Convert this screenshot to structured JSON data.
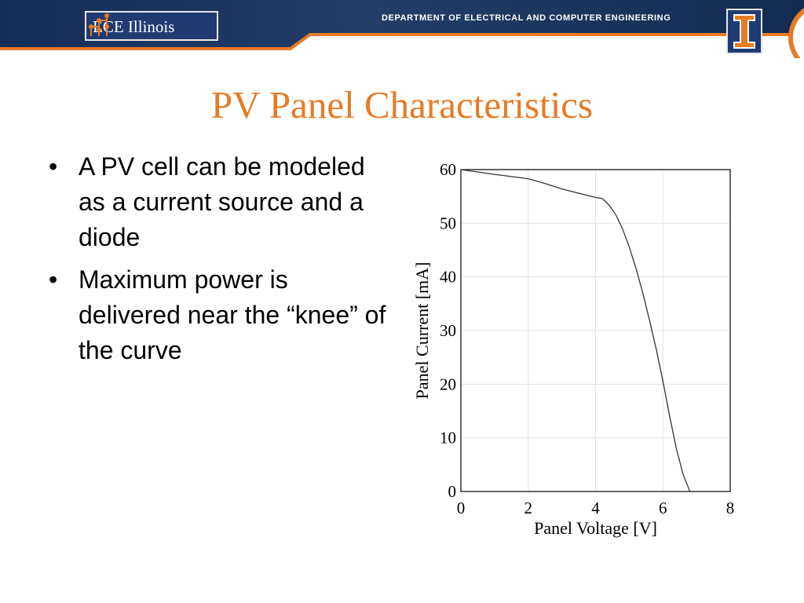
{
  "header": {
    "logo_text": "ECE Illinois",
    "department": "DEPARTMENT OF ELECTRICAL AND COMPUTER ENGINEERING",
    "block_i_letter": "I",
    "colors": {
      "navy": "#1f3b72",
      "orange": "#e77b25"
    }
  },
  "slide": {
    "title": "PV Panel Characteristics",
    "bullets": [
      "A PV cell can be modeled as a current source and a diode",
      "Maximum power is delivered near the “knee” of the curve"
    ]
  },
  "chart_data": {
    "type": "line",
    "title": "",
    "xlabel": "Panel Voltage [V]",
    "ylabel": "Panel Current [mA]",
    "xlim": [
      0,
      8
    ],
    "ylim": [
      0,
      60
    ],
    "xticks": [
      0,
      2,
      4,
      6,
      8
    ],
    "yticks": [
      0,
      10,
      20,
      30,
      40,
      50,
      60
    ],
    "grid": true,
    "series": [
      {
        "color": "#333333",
        "x": [
          0,
          1,
          2,
          2.5,
          3,
          3.5,
          4,
          4.2,
          4.4,
          4.6,
          4.8,
          5.0,
          5.2,
          5.4,
          5.6,
          5.8,
          6.0,
          6.2,
          6.4,
          6.6,
          6.8
        ],
        "y": [
          60,
          59.1,
          58.3,
          57.4,
          56.4,
          55.6,
          54.8,
          54.6,
          53.4,
          51.6,
          49.0,
          45.6,
          41.6,
          37.1,
          32.0,
          26.6,
          20.6,
          14.1,
          8.0,
          3.2,
          0
        ]
      }
    ]
  }
}
